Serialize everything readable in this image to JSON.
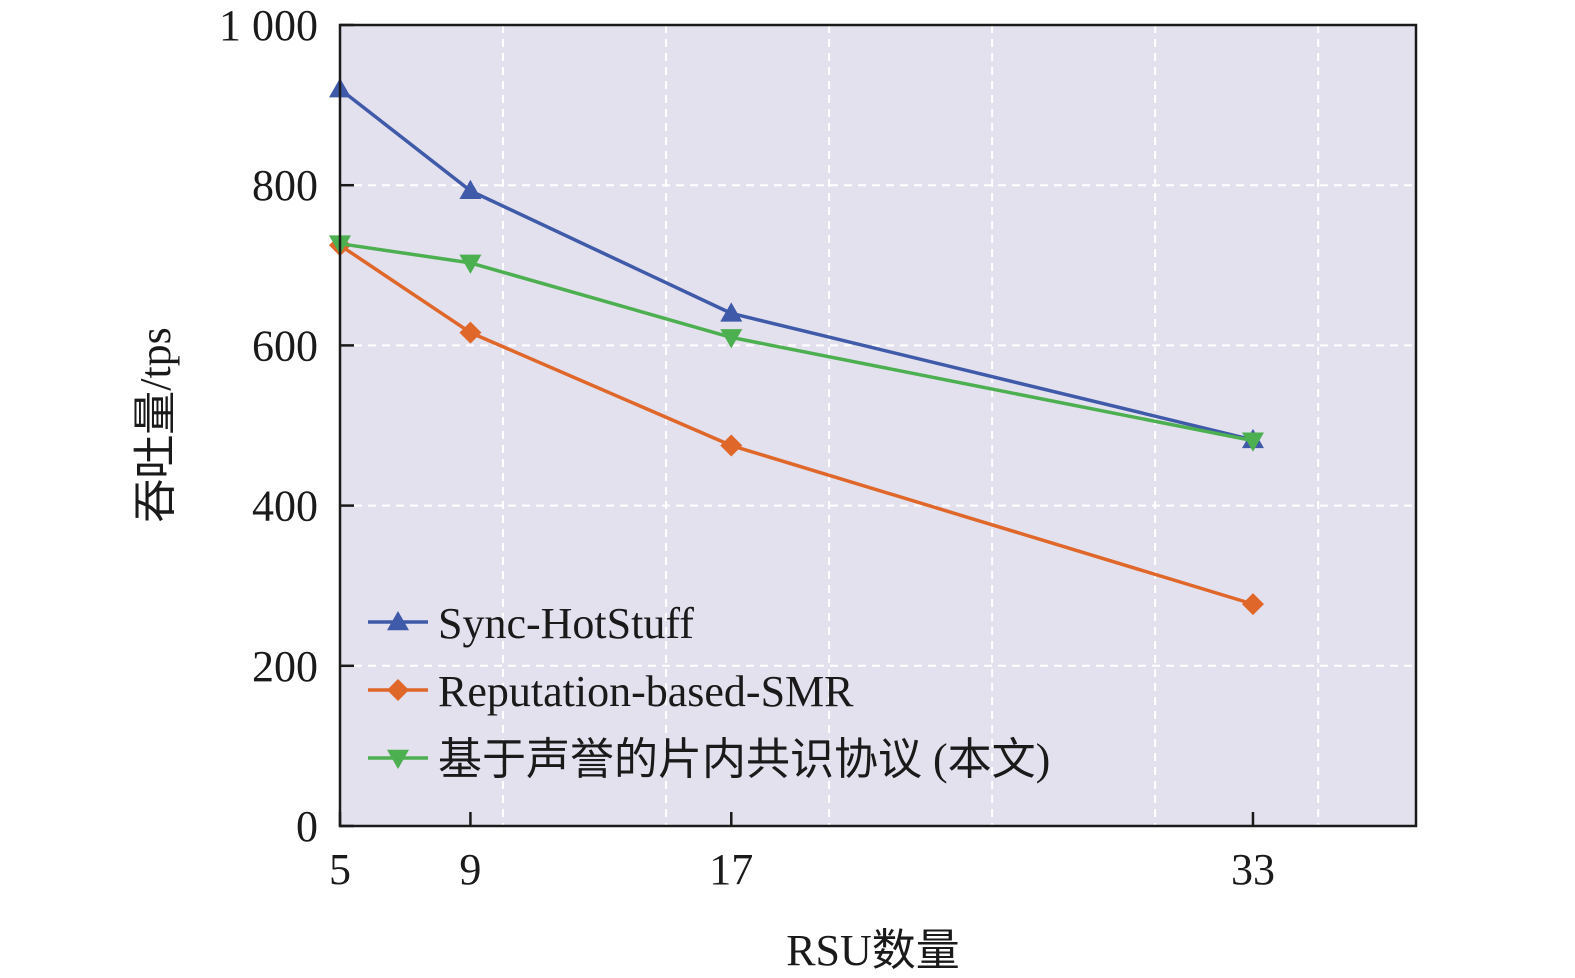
{
  "chart_data": {
    "type": "line",
    "x": [
      5,
      9,
      17,
      33
    ],
    "x_ticks": [
      "5",
      "9",
      "17",
      "33"
    ],
    "y_ticks": [
      "0",
      "200",
      "400",
      "600",
      "800",
      "1 000"
    ],
    "y_tick_values": [
      0,
      200,
      400,
      600,
      800,
      1000
    ],
    "xlim": [
      5,
      38
    ],
    "ylim": [
      0,
      1000
    ],
    "xlabel": "RSU数量",
    "ylabel": "吞吐量/tps",
    "grid": true,
    "legend_position": "bottom-left",
    "background_color": "#e3e1ee",
    "series": [
      {
        "name": "Sync-HotStuff",
        "values": [
          920,
          793,
          640,
          482
        ],
        "color": "#3f5aa8",
        "marker": "triangle-up"
      },
      {
        "name": "Reputation-based-SMR",
        "values": [
          725,
          616,
          475,
          277
        ],
        "color": "#e0672a",
        "marker": "diamond"
      },
      {
        "name": "基于声誉的片内共识协议 (本文)",
        "values": [
          727,
          703,
          610,
          481
        ],
        "color": "#4caf50",
        "marker": "triangle-down"
      }
    ]
  }
}
